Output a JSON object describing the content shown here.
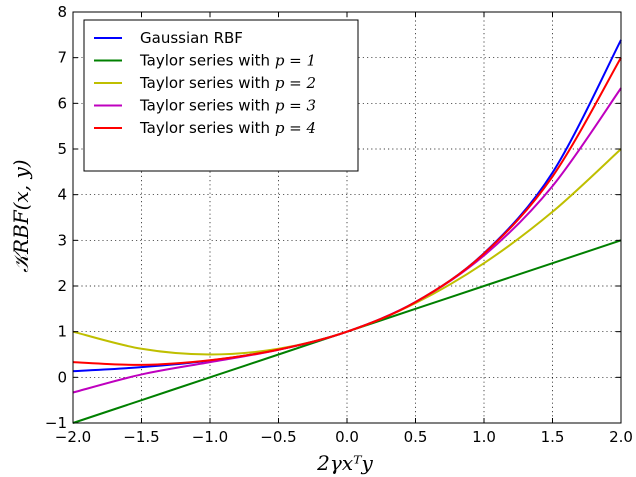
{
  "chart_data": {
    "type": "line",
    "title": "",
    "xlabel": "2γxᵀy",
    "ylabel": "𝒦RBF(x, y)",
    "xlim": [
      -2.0,
      2.0
    ],
    "ylim": [
      -1,
      8
    ],
    "xticks": [
      -2.0,
      -1.5,
      -1.0,
      -0.5,
      0.0,
      0.5,
      1.0,
      1.5,
      2.0
    ],
    "xtick_labels": [
      "−2.0",
      "−1.5",
      "−1.0",
      "−0.5",
      "0.0",
      "0.5",
      "1.0",
      "1.5",
      "2.0"
    ],
    "yticks": [
      -1,
      0,
      1,
      2,
      3,
      4,
      5,
      6,
      7,
      8
    ],
    "ytick_labels": [
      "−1",
      "0",
      "1",
      "2",
      "3",
      "4",
      "5",
      "6",
      "7",
      "8"
    ],
    "grid": true,
    "legend_position": "top-left",
    "x": [
      -2.0,
      -1.5,
      -1.0,
      -0.5,
      0.0,
      0.5,
      1.0,
      1.5,
      2.0
    ],
    "series": [
      {
        "name": "Gaussian RBF",
        "legend_text": "Gaussian RBF",
        "legend_math": "",
        "color": "#0000ff",
        "values": [
          0.135,
          0.223,
          0.368,
          0.607,
          1.0,
          1.649,
          2.718,
          4.482,
          7.389
        ]
      },
      {
        "name": "Taylor series with p = 1",
        "legend_text": "Taylor series with ",
        "legend_math": "p = 1",
        "color": "#008000",
        "values": [
          -1.0,
          -0.5,
          0.0,
          0.5,
          1.0,
          1.5,
          2.0,
          2.5,
          3.0
        ]
      },
      {
        "name": "Taylor series with p = 2",
        "legend_text": "Taylor series with ",
        "legend_math": "p = 2",
        "color": "#bfbf00",
        "values": [
          1.0,
          0.625,
          0.5,
          0.625,
          1.0,
          1.625,
          2.5,
          3.625,
          5.0
        ]
      },
      {
        "name": "Taylor series with p = 3",
        "legend_text": "Taylor series with ",
        "legend_math": "p = 3",
        "color": "#bf00bf",
        "values": [
          -0.333,
          0.063,
          0.333,
          0.604,
          1.0,
          1.646,
          2.667,
          4.188,
          6.333
        ]
      },
      {
        "name": "Taylor series with p = 4",
        "legend_text": "Taylor series with ",
        "legend_math": "p = 4",
        "color": "#ff0000",
        "values": [
          0.333,
          0.273,
          0.375,
          0.607,
          1.0,
          1.648,
          2.708,
          4.398,
          7.0
        ]
      }
    ]
  }
}
